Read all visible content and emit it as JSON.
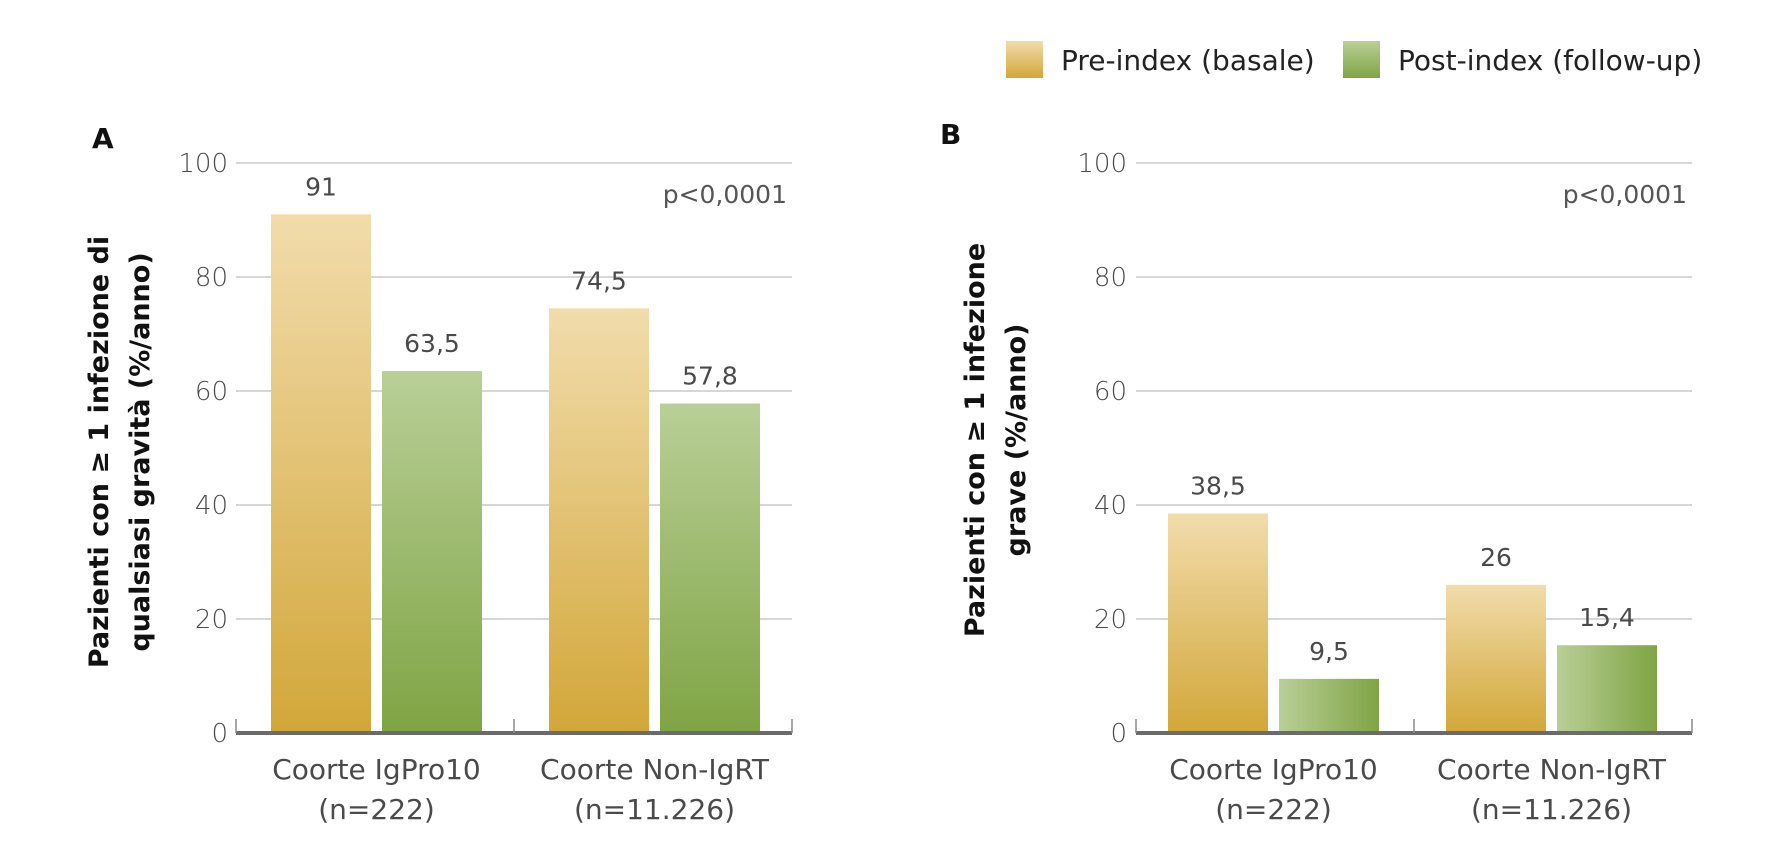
{
  "legend": [
    {
      "label": "Pre-index (basale)",
      "color_top": "#f1dcab",
      "color_bottom": "#d2a739"
    },
    {
      "label": "Post-index (follow-up)",
      "color_top": "#b9cf97",
      "color_bottom": "#7fa444"
    }
  ],
  "chart_data": [
    {
      "type": "bar",
      "panel_label": "A",
      "ylabel_line1": "Pazienti con ≥ 1 infezione di",
      "ylabel_line2": "qualsiasi gravità (%/anno)",
      "ylim": [
        0,
        100
      ],
      "yticks": [
        "0",
        "20",
        "40",
        "60",
        "80",
        "100"
      ],
      "grid": true,
      "pvalue": "p<0,0001",
      "categories": [
        {
          "line1": "Coorte IgPro10",
          "line2": "(n=222)"
        },
        {
          "line1": "Coorte Non-IgRT",
          "line2": "(n=11.226)"
        }
      ],
      "series": [
        {
          "values": [
            91,
            74.5
          ],
          "labels": [
            "91",
            "74,5"
          ]
        },
        {
          "values": [
            63.5,
            57.8
          ],
          "labels": [
            "63,5",
            "57,8"
          ]
        }
      ]
    },
    {
      "type": "bar",
      "panel_label": "B",
      "ylabel_line1": "Pazienti con ≥ 1 infezione",
      "ylabel_line2": "grave (%/anno)",
      "ylim": [
        0,
        100
      ],
      "yticks": [
        "0",
        "20",
        "40",
        "60",
        "80",
        "100"
      ],
      "grid": true,
      "pvalue": "p<0,0001",
      "categories": [
        {
          "line1": "Coorte IgPro10",
          "line2": "(n=222)"
        },
        {
          "line1": "Coorte Non-IgRT",
          "line2": "(n=11.226)"
        }
      ],
      "series": [
        {
          "values": [
            38.5,
            26
          ],
          "labels": [
            "38,5",
            "26"
          ]
        },
        {
          "values": [
            9.5,
            15.4
          ],
          "labels": [
            "9,5",
            "15,4"
          ]
        }
      ]
    }
  ]
}
